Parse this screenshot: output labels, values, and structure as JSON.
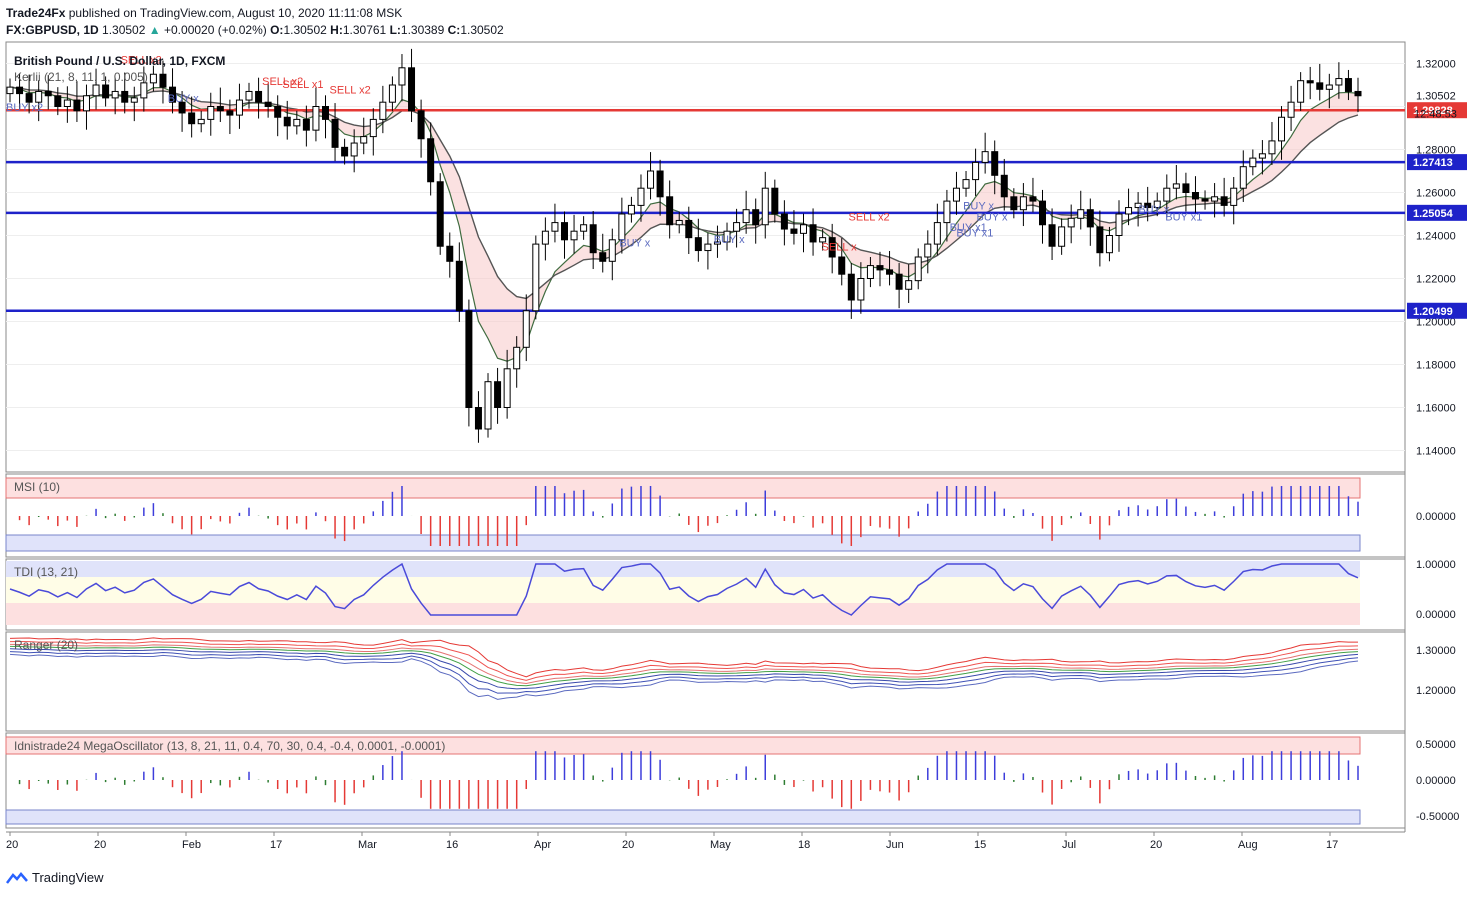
{
  "header": {
    "publisher": "Trade24Fx",
    "published_text": "published on TradingView.com, August 10, 2020 11:11:08 MSK",
    "symbol": "FX:GBPUSD, 1D",
    "last": "1.30502",
    "change": "+0.00020 (+0.02%)",
    "o_label": "O:",
    "o": "1.30502",
    "h_label": "H:",
    "h": "1.30761",
    "l_label": "L:",
    "l": "1.30389",
    "c_label": "C:",
    "c": "1.30502"
  },
  "main_pane": {
    "title": "British Pound / U.S. Dollar, 1D, FXCM",
    "indicator": "Kerlii (21, 8, 11, 1, 0.005)",
    "price_labels": [
      "1.32000",
      "1.30000",
      "1.28000",
      "1.26000",
      "1.24000",
      "1.22000",
      "1.20000",
      "1.18000",
      "1.16000",
      "1.14000"
    ],
    "last_price": "1.30502",
    "countdown": "12:48:53",
    "levels": [
      {
        "value": 1.29828,
        "label": "1.29828",
        "color": "#e53935"
      },
      {
        "value": 1.27413,
        "label": "1.27413",
        "color": "#1e22c9"
      },
      {
        "value": 1.25054,
        "label": "1.25054",
        "color": "#1e22c9"
      },
      {
        "value": 1.20499,
        "label": "1.20499",
        "color": "#1e22c9"
      }
    ],
    "annotations": [
      {
        "text": "SELL x2",
        "x": 0.085,
        "y": 1.32,
        "color": "#e53935"
      },
      {
        "text": "SELL x2",
        "x": 0.19,
        "y": 1.31,
        "color": "#e53935"
      },
      {
        "text": "SELL x1",
        "x": 0.205,
        "y": 1.3085,
        "color": "#e53935"
      },
      {
        "text": "SELL x2",
        "x": 0.24,
        "y": 1.306,
        "color": "#e53935"
      },
      {
        "text": "BUY x2",
        "x": 0.0,
        "y": 1.298,
        "color": "#5c6bc0"
      },
      {
        "text": "BUY x",
        "x": 0.12,
        "y": 1.302,
        "color": "#5c6bc0"
      },
      {
        "text": "BUY x",
        "x": 0.455,
        "y": 1.235,
        "color": "#5c6bc0"
      },
      {
        "text": "BUY x",
        "x": 0.525,
        "y": 1.2365,
        "color": "#5c6bc0"
      },
      {
        "text": "SELL x2",
        "x": 0.625,
        "y": 1.247,
        "color": "#e53935"
      },
      {
        "text": "SELL x",
        "x": 0.605,
        "y": 1.233,
        "color": "#e53935"
      },
      {
        "text": "BUY x1",
        "x": 0.7,
        "y": 1.242,
        "color": "#5c6bc0"
      },
      {
        "text": "BUY x1",
        "x": 0.705,
        "y": 1.2395,
        "color": "#5c6bc0"
      },
      {
        "text": "BUY x",
        "x": 0.71,
        "y": 1.252,
        "color": "#5c6bc0"
      },
      {
        "text": "BUY x",
        "x": 0.72,
        "y": 1.247,
        "color": "#5c6bc0"
      },
      {
        "text": "BUY x",
        "x": 0.84,
        "y": 1.2505,
        "color": "#5c6bc0"
      },
      {
        "text": "BUY x1",
        "x": 0.86,
        "y": 1.247,
        "color": "#5c6bc0"
      }
    ]
  },
  "x_axis": {
    "ticks": [
      "20",
      "20",
      "Feb",
      "17",
      "Mar",
      "16",
      "Apr",
      "20",
      "May",
      "18",
      "Jun",
      "15",
      "Jul",
      "20",
      "Aug",
      "17"
    ]
  },
  "msi_pane": {
    "title": "MSI (10)",
    "price_labels": [
      "0.00000"
    ]
  },
  "tdi_pane": {
    "title": "TDI (13, 21)",
    "price_labels": [
      "1.00000",
      "0.00000"
    ]
  },
  "ranger_pane": {
    "title": "Ranger (20)",
    "price_labels": [
      "1.30000",
      "1.20000"
    ]
  },
  "mega_pane": {
    "title": "Idnistrade24 MegaOscillator (13, 8, 21, 11, 0.4, 70, 30, 0.4, -0.4, 0.0001, -0.0001)",
    "price_labels": [
      "0.50000",
      "0.00000",
      "-0.50000"
    ]
  },
  "footer": {
    "brand": "TradingView"
  },
  "chart_data": {
    "type": "candlestick",
    "title": "British Pound / U.S. Dollar, 1D, FXCM",
    "ylim": [
      1.13,
      1.33
    ],
    "closes": [
      1.309,
      1.306,
      1.302,
      1.307,
      1.305,
      1.3,
      1.303,
      1.298,
      1.305,
      1.31,
      1.304,
      1.307,
      1.302,
      1.304,
      1.311,
      1.315,
      1.309,
      1.302,
      1.297,
      1.292,
      1.294,
      1.3,
      1.298,
      1.296,
      1.303,
      1.307,
      1.302,
      1.3,
      1.295,
      1.291,
      1.294,
      1.289,
      1.3,
      1.294,
      1.281,
      1.277,
      1.283,
      1.286,
      1.294,
      1.302,
      1.31,
      1.318,
      1.298,
      1.285,
      1.265,
      1.235,
      1.228,
      1.205,
      1.16,
      1.15,
      1.172,
      1.16,
      1.178,
      1.188,
      1.205,
      1.236,
      1.242,
      1.246,
      1.238,
      1.242,
      1.245,
      1.232,
      1.228,
      1.238,
      1.25,
      1.254,
      1.262,
      1.27,
      1.258,
      1.245,
      1.247,
      1.239,
      1.233,
      1.236,
      1.237,
      1.242,
      1.246,
      1.252,
      1.245,
      1.262,
      1.25,
      1.243,
      1.241,
      1.245,
      1.237,
      1.239,
      1.23,
      1.222,
      1.21,
      1.22,
      1.226,
      1.224,
      1.222,
      1.215,
      1.219,
      1.23,
      1.236,
      1.246,
      1.256,
      1.262,
      1.266,
      1.274,
      1.279,
      1.268,
      1.258,
      1.252,
      1.258,
      1.256,
      1.245,
      1.235,
      1.244,
      1.248,
      1.252,
      1.244,
      1.232,
      1.24,
      1.25,
      1.253,
      1.255,
      1.253,
      1.256,
      1.262,
      1.264,
      1.26,
      1.257,
      1.256,
      1.258,
      1.254,
      1.262,
      1.272,
      1.276,
      1.278,
      1.284,
      1.295,
      1.302,
      1.312,
      1.311,
      1.308,
      1.31,
      1.313,
      1.307,
      1.305
    ],
    "series": [
      {
        "name": "MSI (10)"
      },
      {
        "name": "TDI (13, 21)"
      },
      {
        "name": "Ranger (20)"
      },
      {
        "name": "MegaOscillator"
      }
    ]
  }
}
